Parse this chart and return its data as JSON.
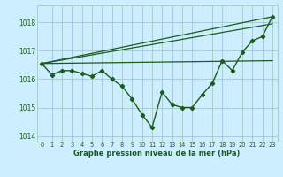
{
  "title": "Graphe pression niveau de la mer (hPa)",
  "bg_color": "#cceeff",
  "grid_color": "#aacccc",
  "line_color": "#1a5c1a",
  "xlim": [
    -0.5,
    23.5
  ],
  "ylim": [
    1013.8,
    1018.6
  ],
  "yticks": [
    1014,
    1015,
    1016,
    1017,
    1018
  ],
  "xticks": [
    0,
    1,
    2,
    3,
    4,
    5,
    6,
    7,
    8,
    9,
    10,
    11,
    12,
    13,
    14,
    15,
    16,
    17,
    18,
    19,
    20,
    21,
    22,
    23
  ],
  "series": [
    {
      "x": [
        0,
        23
      ],
      "y": [
        1016.55,
        1016.65
      ],
      "marker": false,
      "lw": 0.9
    },
    {
      "x": [
        0,
        23
      ],
      "y": [
        1016.55,
        1018.2
      ],
      "marker": false,
      "lw": 0.9
    },
    {
      "x": [
        0,
        23
      ],
      "y": [
        1016.55,
        1017.95
      ],
      "marker": false,
      "lw": 0.9
    },
    {
      "x": [
        0,
        1,
        2,
        3,
        4,
        5,
        6,
        7,
        8,
        9,
        10,
        11,
        12,
        13,
        14,
        15,
        16,
        17,
        18,
        19,
        20,
        21,
        22,
        23
      ],
      "y": [
        1016.55,
        1016.15,
        1016.3,
        1016.3,
        1016.2,
        1016.1,
        1016.3,
        1016.0,
        1015.75,
        1015.3,
        1014.75,
        1014.3,
        1015.55,
        1015.1,
        1015.0,
        1015.0,
        1015.45,
        1015.85,
        1016.65,
        1016.3,
        1016.95,
        1017.35,
        1017.5,
        1018.2
      ],
      "marker": true,
      "lw": 1.0
    }
  ]
}
